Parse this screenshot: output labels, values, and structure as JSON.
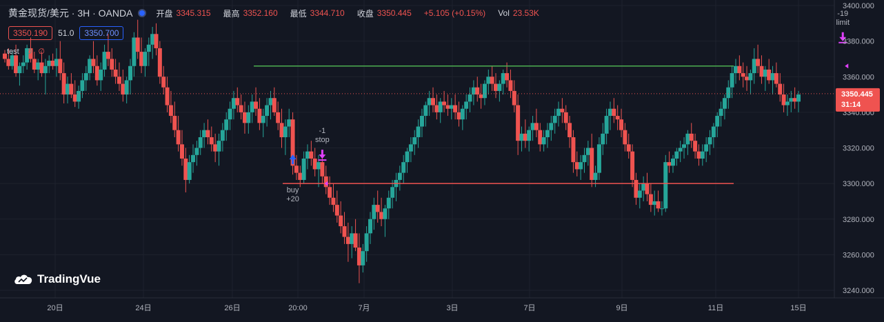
{
  "header": {
    "title": "黄金现货/美元 · 3H · OANDA",
    "open_label": "开盘",
    "open_value": "3345.315",
    "high_label": "最高",
    "high_value": "3352.160",
    "low_label": "最低",
    "low_value": "3344.710",
    "close_label": "收盘",
    "close_value": "3350.445",
    "change": "+5.105 (+0.15%)",
    "vol_label": "Vol",
    "vol_value": "23.53K"
  },
  "quote": {
    "sell": "3350.190",
    "spread": "51.0",
    "buy": "3350.700"
  },
  "study": {
    "name": "test",
    "sym1": "∅",
    "sym2": "∅"
  },
  "logo_text": "TradingVue",
  "price_tag": {
    "value": "3350.445",
    "countdown": "31:14"
  },
  "colors": {
    "up": "#26a69a",
    "down": "#ef5350",
    "background": "#131722",
    "grid": "#1e222d",
    "limit_line": "#4caf50",
    "stop_line": "#ef5350",
    "signal": "#e040fb",
    "buy_arrow": "#2962ff"
  },
  "chart_data": {
    "type": "candlestick",
    "ylim": [
      3240,
      3400
    ],
    "y_ticks": [
      "3240.000",
      "3260.000",
      "3280.000",
      "3300.000",
      "3320.000",
      "3340.000",
      "3360.000",
      "3380.000",
      "3400.000"
    ],
    "x_ticks": [
      "20日",
      "24日",
      "26日",
      "20:00",
      "7月",
      "3日",
      "7日",
      "9日",
      "11日",
      "15日"
    ],
    "last_price": 3350.445,
    "limit_level": 3366,
    "stop_level": 3300,
    "markers": [
      {
        "type": "buy",
        "text": [
          "buy",
          "+20"
        ],
        "bar": 78,
        "price": 3300
      },
      {
        "type": "sell",
        "text": [
          "-1",
          "stop"
        ],
        "bar": 86,
        "price": 3300
      },
      {
        "type": "sell",
        "text": [
          "-19",
          "limit"
        ],
        "bar": 227,
        "price": 3366
      }
    ],
    "candles": [
      [
        3373,
        3375,
        3368,
        3370
      ],
      [
        3370,
        3376,
        3364,
        3366
      ],
      [
        3366,
        3374,
        3364,
        3372
      ],
      [
        3372,
        3378,
        3360,
        3362
      ],
      [
        3362,
        3368,
        3355,
        3366
      ],
      [
        3366,
        3372,
        3362,
        3368
      ],
      [
        3368,
        3378,
        3364,
        3376
      ],
      [
        3376,
        3382,
        3368,
        3370
      ],
      [
        3370,
        3374,
        3362,
        3364
      ],
      [
        3364,
        3370,
        3358,
        3368
      ],
      [
        3368,
        3374,
        3360,
        3362
      ],
      [
        3362,
        3370,
        3350,
        3366
      ],
      [
        3366,
        3372,
        3362,
        3369
      ],
      [
        3369,
        3373,
        3364,
        3366
      ],
      [
        3366,
        3376,
        3360,
        3370
      ],
      [
        3370,
        3380,
        3358,
        3362
      ],
      [
        3362,
        3368,
        3345,
        3350
      ],
      [
        3350,
        3360,
        3345,
        3356
      ],
      [
        3356,
        3362,
        3348,
        3350
      ],
      [
        3350,
        3358,
        3343,
        3346
      ],
      [
        3346,
        3355,
        3342,
        3352
      ],
      [
        3352,
        3362,
        3348,
        3358
      ],
      [
        3358,
        3366,
        3352,
        3362
      ],
      [
        3362,
        3372,
        3358,
        3370
      ],
      [
        3370,
        3380,
        3362,
        3366
      ],
      [
        3366,
        3372,
        3355,
        3358
      ],
      [
        3358,
        3368,
        3352,
        3364
      ],
      [
        3364,
        3378,
        3360,
        3374
      ],
      [
        3374,
        3384,
        3366,
        3370
      ],
      [
        3370,
        3376,
        3360,
        3364
      ],
      [
        3364,
        3370,
        3356,
        3360
      ],
      [
        3360,
        3368,
        3352,
        3356
      ],
      [
        3356,
        3364,
        3346,
        3350
      ],
      [
        3350,
        3360,
        3345,
        3358
      ],
      [
        3358,
        3370,
        3350,
        3366
      ],
      [
        3366,
        3385,
        3360,
        3382
      ],
      [
        3382,
        3392,
        3370,
        3374
      ],
      [
        3374,
        3382,
        3362,
        3366
      ],
      [
        3366,
        3376,
        3360,
        3374
      ],
      [
        3374,
        3382,
        3366,
        3378
      ],
      [
        3378,
        3388,
        3370,
        3384
      ],
      [
        3384,
        3390,
        3372,
        3376
      ],
      [
        3376,
        3380,
        3356,
        3360
      ],
      [
        3360,
        3366,
        3350,
        3354
      ],
      [
        3354,
        3360,
        3340,
        3344
      ],
      [
        3344,
        3352,
        3334,
        3338
      ],
      [
        3338,
        3346,
        3326,
        3330
      ],
      [
        3330,
        3338,
        3318,
        3322
      ],
      [
        3322,
        3330,
        3310,
        3314
      ],
      [
        3314,
        3320,
        3295,
        3302
      ],
      [
        3302,
        3316,
        3300,
        3312
      ],
      [
        3312,
        3322,
        3306,
        3316
      ],
      [
        3316,
        3324,
        3310,
        3320
      ],
      [
        3320,
        3330,
        3316,
        3326
      ],
      [
        3326,
        3334,
        3320,
        3330
      ],
      [
        3330,
        3336,
        3322,
        3326
      ],
      [
        3326,
        3332,
        3318,
        3322
      ],
      [
        3322,
        3328,
        3312,
        3318
      ],
      [
        3318,
        3328,
        3310,
        3324
      ],
      [
        3324,
        3334,
        3318,
        3330
      ],
      [
        3330,
        3340,
        3324,
        3336
      ],
      [
        3336,
        3346,
        3330,
        3342
      ],
      [
        3342,
        3352,
        3336,
        3348
      ],
      [
        3348,
        3354,
        3340,
        3344
      ],
      [
        3344,
        3350,
        3336,
        3340
      ],
      [
        3340,
        3346,
        3328,
        3334
      ],
      [
        3334,
        3344,
        3328,
        3340
      ],
      [
        3340,
        3350,
        3334,
        3346
      ],
      [
        3346,
        3354,
        3338,
        3342
      ],
      [
        3342,
        3348,
        3330,
        3334
      ],
      [
        3334,
        3342,
        3326,
        3338
      ],
      [
        3338,
        3348,
        3332,
        3344
      ],
      [
        3344,
        3352,
        3336,
        3348
      ],
      [
        3348,
        3354,
        3338,
        3340
      ],
      [
        3340,
        3346,
        3330,
        3334
      ],
      [
        3334,
        3342,
        3320,
        3326
      ],
      [
        3326,
        3336,
        3316,
        3332
      ],
      [
        3332,
        3342,
        3326,
        3336
      ],
      [
        3336,
        3340,
        3305,
        3310
      ],
      [
        3310,
        3316,
        3302,
        3306
      ],
      [
        3306,
        3310,
        3298,
        3302
      ],
      [
        3302,
        3318,
        3300,
        3314
      ],
      [
        3314,
        3322,
        3308,
        3318
      ],
      [
        3318,
        3324,
        3310,
        3314
      ],
      [
        3314,
        3320,
        3304,
        3308
      ],
      [
        3308,
        3316,
        3298,
        3312
      ],
      [
        3312,
        3318,
        3300,
        3304
      ],
      [
        3304,
        3310,
        3294,
        3298
      ],
      [
        3298,
        3304,
        3288,
        3292
      ],
      [
        3292,
        3300,
        3284,
        3288
      ],
      [
        3288,
        3296,
        3278,
        3282
      ],
      [
        3282,
        3290,
        3272,
        3276
      ],
      [
        3276,
        3284,
        3266,
        3270
      ],
      [
        3270,
        3278,
        3256,
        3266
      ],
      [
        3266,
        3276,
        3258,
        3272
      ],
      [
        3272,
        3280,
        3262,
        3264
      ],
      [
        3264,
        3272,
        3244,
        3254
      ],
      [
        3254,
        3266,
        3250,
        3262
      ],
      [
        3262,
        3276,
        3256,
        3272
      ],
      [
        3272,
        3284,
        3266,
        3280
      ],
      [
        3280,
        3292,
        3274,
        3288
      ],
      [
        3288,
        3296,
        3278,
        3284
      ],
      [
        3284,
        3292,
        3276,
        3280
      ],
      [
        3280,
        3288,
        3270,
        3286
      ],
      [
        3286,
        3296,
        3280,
        3292
      ],
      [
        3292,
        3302,
        3286,
        3298
      ],
      [
        3298,
        3306,
        3290,
        3302
      ],
      [
        3302,
        3310,
        3296,
        3306
      ],
      [
        3306,
        3316,
        3300,
        3312
      ],
      [
        3312,
        3320,
        3306,
        3318
      ],
      [
        3318,
        3326,
        3312,
        3322
      ],
      [
        3322,
        3330,
        3316,
        3326
      ],
      [
        3326,
        3336,
        3320,
        3332
      ],
      [
        3332,
        3342,
        3326,
        3338
      ],
      [
        3338,
        3346,
        3332,
        3344
      ],
      [
        3344,
        3352,
        3338,
        3348
      ],
      [
        3348,
        3354,
        3340,
        3344
      ],
      [
        3344,
        3350,
        3336,
        3340
      ],
      [
        3340,
        3348,
        3334,
        3346
      ],
      [
        3346,
        3352,
        3340,
        3344
      ],
      [
        3344,
        3350,
        3338,
        3342
      ],
      [
        3342,
        3348,
        3336,
        3344
      ],
      [
        3344,
        3350,
        3336,
        3340
      ],
      [
        3340,
        3346,
        3332,
        3336
      ],
      [
        3336,
        3344,
        3330,
        3342
      ],
      [
        3342,
        3350,
        3336,
        3346
      ],
      [
        3346,
        3354,
        3340,
        3350
      ],
      [
        3350,
        3358,
        3344,
        3354
      ],
      [
        3354,
        3360,
        3346,
        3350
      ],
      [
        3350,
        3356,
        3342,
        3348
      ],
      [
        3348,
        3358,
        3344,
        3356
      ],
      [
        3356,
        3364,
        3350,
        3360
      ],
      [
        3360,
        3366,
        3352,
        3356
      ],
      [
        3356,
        3362,
        3348,
        3352
      ],
      [
        3352,
        3358,
        3346,
        3356
      ],
      [
        3356,
        3364,
        3350,
        3362
      ],
      [
        3362,
        3368,
        3354,
        3358
      ],
      [
        3358,
        3364,
        3348,
        3352
      ],
      [
        3352,
        3358,
        3340,
        3344
      ],
      [
        3344,
        3350,
        3316,
        3324
      ],
      [
        3324,
        3332,
        3318,
        3328
      ],
      [
        3328,
        3336,
        3320,
        3324
      ],
      [
        3324,
        3332,
        3318,
        3330
      ],
      [
        3330,
        3338,
        3324,
        3334
      ],
      [
        3334,
        3342,
        3326,
        3330
      ],
      [
        3330,
        3334,
        3318,
        3322
      ],
      [
        3322,
        3330,
        3318,
        3326
      ],
      [
        3326,
        3334,
        3320,
        3330
      ],
      [
        3330,
        3338,
        3324,
        3334
      ],
      [
        3334,
        3342,
        3328,
        3338
      ],
      [
        3338,
        3346,
        3332,
        3342
      ],
      [
        3342,
        3348,
        3334,
        3340
      ],
      [
        3340,
        3344,
        3330,
        3334
      ],
      [
        3334,
        3338,
        3320,
        3326
      ],
      [
        3326,
        3330,
        3306,
        3312
      ],
      [
        3312,
        3318,
        3304,
        3308
      ],
      [
        3308,
        3316,
        3302,
        3312
      ],
      [
        3312,
        3320,
        3306,
        3316
      ],
      [
        3316,
        3324,
        3310,
        3320
      ],
      [
        3320,
        3328,
        3298,
        3302
      ],
      [
        3302,
        3310,
        3298,
        3306
      ],
      [
        3306,
        3326,
        3302,
        3322
      ],
      [
        3322,
        3334,
        3316,
        3328
      ],
      [
        3328,
        3342,
        3322,
        3338
      ],
      [
        3338,
        3346,
        3330,
        3342
      ],
      [
        3342,
        3348,
        3334,
        3338
      ],
      [
        3338,
        3344,
        3330,
        3336
      ],
      [
        3336,
        3342,
        3326,
        3330
      ],
      [
        3330,
        3334,
        3318,
        3322
      ],
      [
        3322,
        3328,
        3314,
        3318
      ],
      [
        3318,
        3322,
        3298,
        3302
      ],
      [
        3302,
        3306,
        3288,
        3292
      ],
      [
        3292,
        3300,
        3286,
        3296
      ],
      [
        3296,
        3304,
        3290,
        3300
      ],
      [
        3300,
        3306,
        3290,
        3294
      ],
      [
        3294,
        3300,
        3284,
        3288
      ],
      [
        3288,
        3296,
        3282,
        3290
      ],
      [
        3290,
        3296,
        3284,
        3286
      ],
      [
        3286,
        3290,
        3282,
        3286
      ],
      [
        3286,
        3316,
        3284,
        3312
      ],
      [
        3312,
        3318,
        3306,
        3310
      ],
      [
        3310,
        3316,
        3306,
        3314
      ],
      [
        3314,
        3320,
        3310,
        3318
      ],
      [
        3318,
        3324,
        3312,
        3320
      ],
      [
        3320,
        3326,
        3314,
        3322
      ],
      [
        3322,
        3330,
        3316,
        3328
      ],
      [
        3328,
        3334,
        3320,
        3324
      ],
      [
        3324,
        3328,
        3314,
        3318
      ],
      [
        3318,
        3322,
        3310,
        3314
      ],
      [
        3314,
        3322,
        3310,
        3318
      ],
      [
        3318,
        3326,
        3312,
        3322
      ],
      [
        3322,
        3330,
        3316,
        3326
      ],
      [
        3326,
        3334,
        3320,
        3332
      ],
      [
        3332,
        3340,
        3326,
        3338
      ],
      [
        3338,
        3346,
        3332,
        3342
      ],
      [
        3342,
        3350,
        3336,
        3348
      ],
      [
        3348,
        3358,
        3342,
        3354
      ],
      [
        3354,
        3366,
        3348,
        3362
      ],
      [
        3362,
        3370,
        3356,
        3366
      ],
      [
        3366,
        3372,
        3358,
        3362
      ],
      [
        3362,
        3368,
        3354,
        3360
      ],
      [
        3360,
        3366,
        3352,
        3358
      ],
      [
        3358,
        3364,
        3350,
        3362
      ],
      [
        3362,
        3376,
        3356,
        3370
      ],
      [
        3370,
        3378,
        3362,
        3366
      ],
      [
        3366,
        3372,
        3356,
        3360
      ],
      [
        3360,
        3366,
        3352,
        3364
      ],
      [
        3364,
        3370,
        3356,
        3358
      ],
      [
        3358,
        3366,
        3350,
        3362
      ],
      [
        3362,
        3368,
        3354,
        3356
      ],
      [
        3356,
        3362,
        3346,
        3350
      ],
      [
        3350,
        3356,
        3340,
        3344
      ],
      [
        3344,
        3350,
        3338,
        3346
      ],
      [
        3346,
        3352,
        3340,
        3348
      ],
      [
        3348,
        3354,
        3342,
        3346
      ],
      [
        3346,
        3352,
        3340,
        3350
      ]
    ]
  }
}
